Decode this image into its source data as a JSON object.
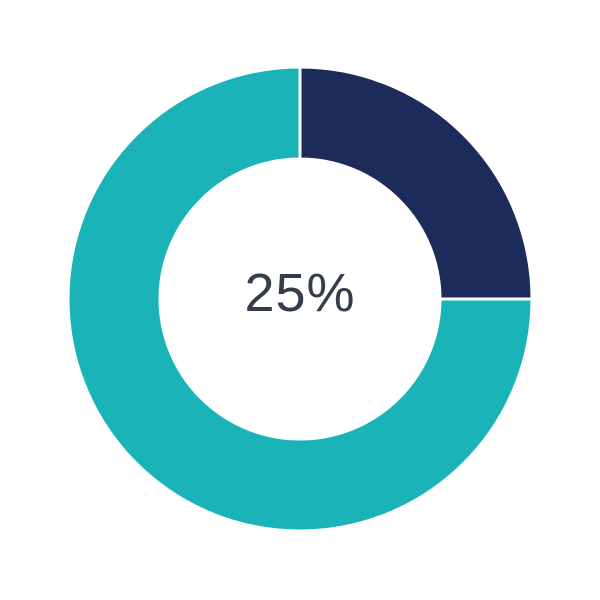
{
  "chart_data": {
    "type": "pie",
    "variant": "donut",
    "center_label": "25%",
    "slices": [
      {
        "value": 25,
        "color": "#1c2b5a"
      },
      {
        "value": 75,
        "color": "#1ab3b8"
      }
    ],
    "legend": "none"
  }
}
